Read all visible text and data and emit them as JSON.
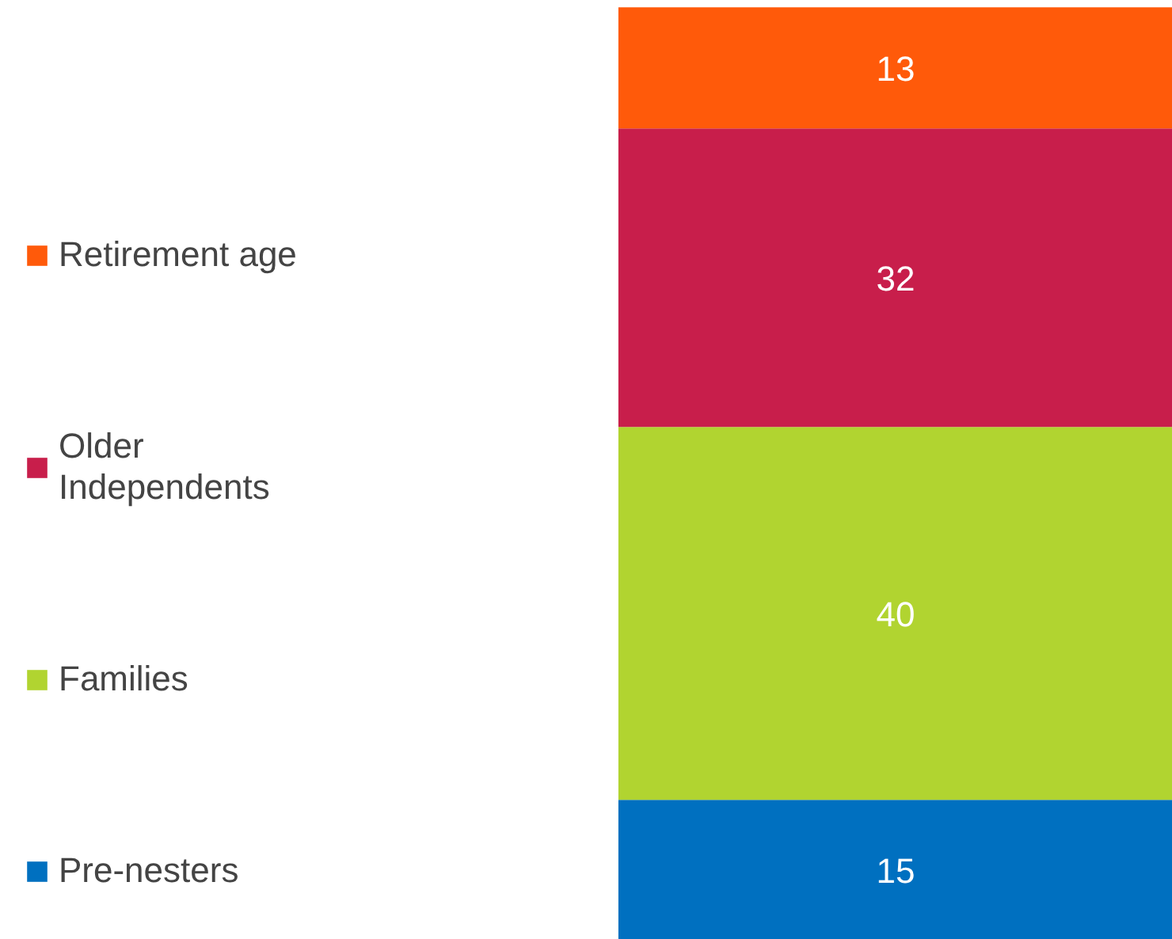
{
  "chart_data": {
    "type": "bar",
    "stacked": true,
    "categories": [
      null
    ],
    "data_labels": true,
    "legend": "left",
    "series": [
      {
        "name": "Pre-nesters",
        "color": "#0070c0",
        "values": [
          15
        ]
      },
      {
        "name": "Families",
        "color": "#b1d430",
        "values": [
          40
        ]
      },
      {
        "name": "Older Independents",
        "color": "#c81e4b",
        "values": [
          32
        ]
      },
      {
        "name": "Retirement age",
        "color": "#ff5a0a",
        "values": [
          13
        ]
      }
    ]
  }
}
